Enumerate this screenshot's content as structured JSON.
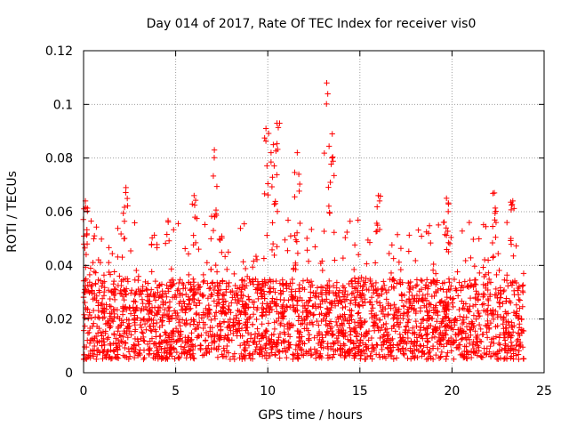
{
  "chart_data": {
    "type": "scatter",
    "title": "Day 014 of 2017, Rate Of TEC Index for receiver vis0",
    "xlabel": "GPS time / hours",
    "ylabel": "ROTI / TECUs",
    "xlim": [
      0,
      25
    ],
    "ylim": [
      0,
      0.12
    ],
    "grid": true,
    "marker": "+",
    "series_color": "#ff0000",
    "xticks": [
      0,
      5,
      10,
      15,
      20,
      25
    ],
    "xtick_labels": [
      "0",
      "5",
      "10",
      "15",
      "20",
      "25"
    ],
    "yticks": [
      0,
      0.02,
      0.04,
      0.06,
      0.08,
      0.1,
      0.12
    ],
    "ytick_labels": [
      "0",
      "0.02",
      "0.04",
      "0.06",
      "0.08",
      "0.1",
      "0.12"
    ],
    "data_range": {
      "x_start": 0.0,
      "x_end": 23.9
    },
    "notable_peaks": [
      {
        "x": 0.1,
        "y": 0.064
      },
      {
        "x": 2.3,
        "y": 0.069
      },
      {
        "x": 6.0,
        "y": 0.066
      },
      {
        "x": 7.1,
        "y": 0.083
      },
      {
        "x": 9.9,
        "y": 0.091
      },
      {
        "x": 10.5,
        "y": 0.093
      },
      {
        "x": 10.3,
        "y": 0.085
      },
      {
        "x": 11.6,
        "y": 0.082
      },
      {
        "x": 13.2,
        "y": 0.108
      },
      {
        "x": 13.5,
        "y": 0.089
      },
      {
        "x": 16.0,
        "y": 0.066
      },
      {
        "x": 19.7,
        "y": 0.065
      },
      {
        "x": 22.3,
        "y": 0.067
      },
      {
        "x": 23.3,
        "y": 0.064
      }
    ],
    "typical_band": {
      "low": 0.005,
      "high": 0.045
    }
  }
}
